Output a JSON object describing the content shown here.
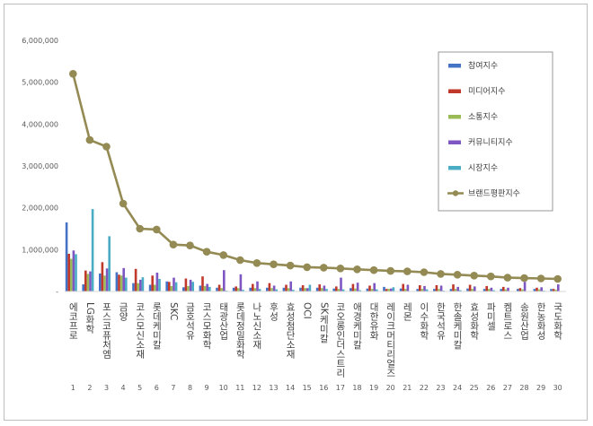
{
  "chart_data": {
    "type": "bar",
    "title": "",
    "xlabel": "",
    "ylabel": "",
    "ylim": [
      0,
      6000000
    ],
    "yticks": [
      "-",
      "1,000,000",
      "2,000,000",
      "3,000,000",
      "4,000,000",
      "5,000,000",
      "6,000,000"
    ],
    "ranks": [
      "1",
      "2",
      "3",
      "4",
      "5",
      "6",
      "7",
      "8",
      "9",
      "10",
      "11",
      "12",
      "13",
      "14",
      "15",
      "16",
      "17",
      "18",
      "19",
      "20",
      "21",
      "22",
      "23",
      "24",
      "25",
      "26",
      "27",
      "28",
      "29",
      "30"
    ],
    "categories": [
      "에코프로",
      "LG화학",
      "포스코퓨처엠",
      "금양",
      "코스모신소재",
      "롯데케미칼",
      "SKC",
      "금호석유",
      "코스모화학",
      "태광산업",
      "롯데정밀화학",
      "나노신소재",
      "후성",
      "효성첨단소재",
      "OCI",
      "SK케미칼",
      "코오롱인더스트리",
      "애경케미칼",
      "대한유화",
      "레이크머티리얼즈",
      "레몬",
      "이수화학",
      "한국석유",
      "한솔케미칼",
      "효성화학",
      "파미셀",
      "켐트로스",
      "송원산업",
      "한농화성",
      "국도화학"
    ],
    "series": [
      {
        "name": "참여지수",
        "color": "#4472c4",
        "values": [
          1650000,
          170000,
          430000,
          460000,
          200000,
          160000,
          240000,
          100000,
          140000,
          90000,
          90000,
          90000,
          90000,
          90000,
          90000,
          90000,
          70000,
          80000,
          70000,
          110000,
          70000,
          60000,
          60000,
          60000,
          70000,
          60000,
          60000,
          60000,
          60000,
          60000
        ]
      },
      {
        "name": "미디어지수",
        "color": "#c0392b",
        "values": [
          900000,
          500000,
          700000,
          400000,
          540000,
          380000,
          230000,
          310000,
          360000,
          160000,
          120000,
          180000,
          200000,
          160000,
          150000,
          170000,
          120000,
          180000,
          140000,
          60000,
          180000,
          150000,
          150000,
          170000,
          160000,
          130000,
          110000,
          80000,
          90000,
          60000
        ]
      },
      {
        "name": "소통지수",
        "color": "#9bbb59",
        "values": [
          780000,
          420000,
          380000,
          380000,
          200000,
          160000,
          130000,
          130000,
          130000,
          80000,
          80000,
          80000,
          80000,
          80000,
          80000,
          80000,
          60000,
          70000,
          60000,
          60000,
          60000,
          60000,
          60000,
          60000,
          60000,
          60000,
          50000,
          50000,
          50000,
          40000
        ]
      },
      {
        "name": "커뮤니티지수",
        "color": "#7e57c2",
        "values": [
          980000,
          480000,
          550000,
          560000,
          280000,
          450000,
          330000,
          280000,
          180000,
          510000,
          410000,
          240000,
          140000,
          240000,
          80000,
          140000,
          330000,
          210000,
          200000,
          70000,
          160000,
          130000,
          140000,
          110000,
          120000,
          90000,
          90000,
          230000,
          100000,
          170000
        ]
      },
      {
        "name": "시장지수",
        "color": "#4bacc6",
        "values": [
          890000,
          1970000,
          1320000,
          330000,
          340000,
          300000,
          220000,
          230000,
          110000,
          20000,
          40000,
          60000,
          50000,
          40000,
          160000,
          60000,
          50000,
          30000,
          50000,
          100000,
          10000,
          50000,
          20000,
          30000,
          10000,
          30000,
          10000,
          10000,
          20000,
          10000
        ]
      }
    ],
    "line": {
      "name": "브랜드평판지수",
      "color": "#948a54",
      "values": [
        5200000,
        3620000,
        3460000,
        2100000,
        1500000,
        1480000,
        1120000,
        1100000,
        950000,
        870000,
        750000,
        680000,
        650000,
        620000,
        580000,
        570000,
        550000,
        530000,
        510000,
        490000,
        480000,
        460000,
        420000,
        400000,
        380000,
        360000,
        330000,
        320000,
        310000,
        300000
      ]
    },
    "legend_position": "top-right",
    "grid": false
  }
}
